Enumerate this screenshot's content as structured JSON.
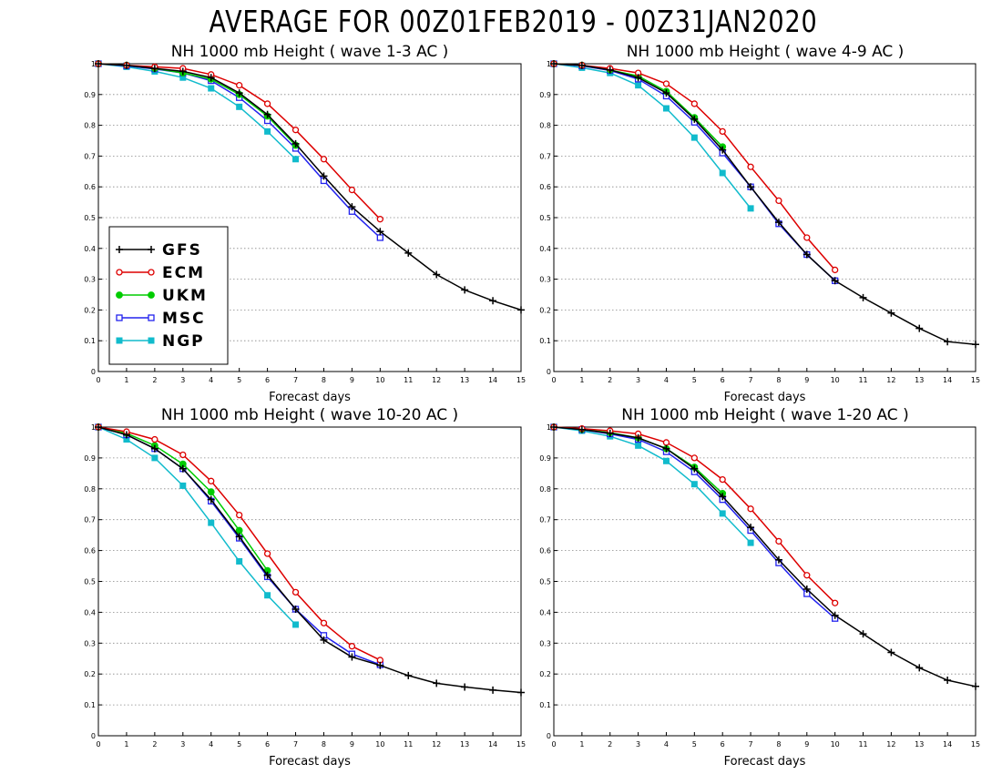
{
  "title": "AVERAGE FOR 00Z01FEB2019 - 00Z31JAN2020",
  "colors": {
    "GFS": "#000000",
    "ECM": "#dd0000",
    "UKM": "#00cc00",
    "MSC": "#2222ee",
    "NGP": "#11bbcc",
    "grid": "#888888"
  },
  "chart_data": [
    {
      "type": "line",
      "title": "NH 1000 mb Height ( wave 1-3 AC )",
      "xlabel": "Forecast days",
      "ylabel": "",
      "xlim": [
        0,
        15
      ],
      "ylim": [
        0,
        1
      ],
      "x_ticks": [
        "0",
        "1",
        "2",
        "3",
        "4",
        "5",
        "6",
        "7",
        "8",
        "9",
        "10",
        "11",
        "12",
        "13",
        "14",
        "15"
      ],
      "y_ticks": [
        "0",
        "0.1",
        "0.2",
        "0.3",
        "0.4",
        "0.5",
        "0.6",
        "0.7",
        "0.8",
        "0.9",
        "1"
      ],
      "grid": true,
      "legend": "bottom-left",
      "series": [
        {
          "name": "GFS",
          "marker": "plus",
          "x": [
            0,
            1,
            2,
            3,
            4,
            5,
            6,
            7,
            8,
            9,
            10,
            11,
            12,
            13,
            14,
            15
          ],
          "values": [
            1.0,
            0.995,
            0.985,
            0.975,
            0.955,
            0.905,
            0.835,
            0.74,
            0.635,
            0.535,
            0.455,
            0.385,
            0.315,
            0.265,
            0.23,
            0.2
          ]
        },
        {
          "name": "ECM",
          "marker": "circle",
          "x": [
            0,
            1,
            2,
            3,
            4,
            5,
            6,
            7,
            8,
            9,
            10
          ],
          "values": [
            1.0,
            0.995,
            0.99,
            0.985,
            0.965,
            0.93,
            0.87,
            0.785,
            0.69,
            0.59,
            0.495
          ]
        },
        {
          "name": "UKM",
          "marker": "filled-circle",
          "x": [
            0,
            1,
            2,
            3,
            4,
            5,
            6,
            7
          ],
          "values": [
            1.0,
            0.995,
            0.985,
            0.97,
            0.95,
            0.9,
            0.83,
            0.735
          ]
        },
        {
          "name": "MSC",
          "marker": "square",
          "x": [
            0,
            1,
            2,
            3,
            4,
            5,
            6,
            7,
            8,
            9,
            10
          ],
          "values": [
            1.0,
            0.993,
            0.983,
            0.97,
            0.945,
            0.89,
            0.815,
            0.725,
            0.62,
            0.52,
            0.435
          ]
        },
        {
          "name": "NGP",
          "marker": "filled-square",
          "x": [
            0,
            1,
            2,
            3,
            4,
            5,
            6,
            7
          ],
          "values": [
            1.0,
            0.99,
            0.975,
            0.955,
            0.92,
            0.86,
            0.78,
            0.69
          ]
        }
      ]
    },
    {
      "type": "line",
      "title": "NH 1000 mb Height ( wave 4-9 AC )",
      "xlabel": "Forecast days",
      "ylabel": "",
      "xlim": [
        0,
        15
      ],
      "ylim": [
        0,
        1
      ],
      "x_ticks": [
        "0",
        "1",
        "2",
        "3",
        "4",
        "5",
        "6",
        "7",
        "8",
        "9",
        "10",
        "11",
        "12",
        "13",
        "14",
        "15"
      ],
      "y_ticks": [
        "0",
        "0.1",
        "0.2",
        "0.3",
        "0.4",
        "0.5",
        "0.6",
        "0.7",
        "0.8",
        "0.9",
        "1"
      ],
      "grid": true,
      "legend": "",
      "series": [
        {
          "name": "GFS",
          "marker": "plus",
          "x": [
            0,
            1,
            2,
            3,
            4,
            5,
            6,
            7,
            8,
            9,
            10,
            11,
            12,
            13,
            14,
            15
          ],
          "values": [
            1.0,
            0.995,
            0.98,
            0.955,
            0.905,
            0.82,
            0.72,
            0.6,
            0.485,
            0.38,
            0.295,
            0.24,
            0.19,
            0.14,
            0.097,
            0.088
          ]
        },
        {
          "name": "ECM",
          "marker": "circle",
          "x": [
            0,
            1,
            2,
            3,
            4,
            5,
            6,
            7,
            8,
            9,
            10
          ],
          "values": [
            1.0,
            0.995,
            0.985,
            0.97,
            0.935,
            0.87,
            0.78,
            0.665,
            0.555,
            0.435,
            0.33
          ]
        },
        {
          "name": "UKM",
          "marker": "filled-circle",
          "x": [
            0,
            1,
            2,
            3,
            4,
            5,
            6
          ],
          "values": [
            1.0,
            0.995,
            0.98,
            0.96,
            0.91,
            0.825,
            0.73
          ]
        },
        {
          "name": "MSC",
          "marker": "square",
          "x": [
            0,
            1,
            2,
            3,
            4,
            5,
            6,
            7,
            8,
            9,
            10
          ],
          "values": [
            1.0,
            0.993,
            0.978,
            0.95,
            0.895,
            0.81,
            0.71,
            0.6,
            0.48,
            0.38,
            0.295
          ]
        },
        {
          "name": "NGP",
          "marker": "filled-square",
          "x": [
            0,
            1,
            2,
            3,
            4,
            5,
            6,
            7
          ],
          "values": [
            1.0,
            0.987,
            0.97,
            0.93,
            0.855,
            0.76,
            0.645,
            0.53
          ]
        }
      ]
    },
    {
      "type": "line",
      "title": "NH 1000 mb Height ( wave 10-20 AC )",
      "xlabel": "Forecast days",
      "ylabel": "",
      "xlim": [
        0,
        15
      ],
      "ylim": [
        0,
        1
      ],
      "x_ticks": [
        "0",
        "1",
        "2",
        "3",
        "4",
        "5",
        "6",
        "7",
        "8",
        "9",
        "10",
        "11",
        "12",
        "13",
        "14",
        "15"
      ],
      "y_ticks": [
        "0",
        "0.1",
        "0.2",
        "0.3",
        "0.4",
        "0.5",
        "0.6",
        "0.7",
        "0.8",
        "0.9",
        "1"
      ],
      "grid": true,
      "legend": "",
      "series": [
        {
          "name": "GFS",
          "marker": "plus",
          "x": [
            0,
            1,
            2,
            3,
            4,
            5,
            6,
            7,
            8,
            9,
            10,
            11,
            12,
            13,
            14,
            15
          ],
          "values": [
            1.0,
            0.975,
            0.93,
            0.865,
            0.765,
            0.645,
            0.52,
            0.41,
            0.31,
            0.255,
            0.228,
            0.195,
            0.17,
            0.158,
            0.148,
            0.14
          ]
        },
        {
          "name": "ECM",
          "marker": "circle",
          "x": [
            0,
            1,
            2,
            3,
            4,
            5,
            6,
            7,
            8,
            9,
            10
          ],
          "values": [
            1.0,
            0.985,
            0.96,
            0.91,
            0.825,
            0.715,
            0.59,
            0.465,
            0.365,
            0.29,
            0.245
          ]
        },
        {
          "name": "UKM",
          "marker": "filled-circle",
          "x": [
            0,
            1,
            2,
            3,
            4,
            5,
            6
          ],
          "values": [
            1.0,
            0.98,
            0.94,
            0.88,
            0.79,
            0.665,
            0.535
          ]
        },
        {
          "name": "MSC",
          "marker": "square",
          "x": [
            0,
            1,
            2,
            3,
            4,
            5,
            6,
            7,
            8,
            9,
            10
          ],
          "values": [
            1.0,
            0.975,
            0.93,
            0.865,
            0.76,
            0.64,
            0.515,
            0.41,
            0.325,
            0.265,
            0.23
          ]
        },
        {
          "name": "NGP",
          "marker": "filled-square",
          "x": [
            0,
            1,
            2,
            3,
            4,
            5,
            6,
            7
          ],
          "values": [
            1.0,
            0.96,
            0.9,
            0.81,
            0.69,
            0.565,
            0.455,
            0.36
          ]
        }
      ]
    },
    {
      "type": "line",
      "title": "NH 1000 mb Height ( wave 1-20 AC )",
      "xlabel": "Forecast days",
      "ylabel": "",
      "xlim": [
        0,
        15
      ],
      "ylim": [
        0,
        1
      ],
      "x_ticks": [
        "0",
        "1",
        "2",
        "3",
        "4",
        "5",
        "6",
        "7",
        "8",
        "9",
        "10",
        "11",
        "12",
        "13",
        "14",
        "15"
      ],
      "y_ticks": [
        "0",
        "0.1",
        "0.2",
        "0.3",
        "0.4",
        "0.5",
        "0.6",
        "0.7",
        "0.8",
        "0.9",
        "1"
      ],
      "grid": true,
      "legend": "",
      "series": [
        {
          "name": "GFS",
          "marker": "plus",
          "x": [
            0,
            1,
            2,
            3,
            4,
            5,
            6,
            7,
            8,
            9,
            10,
            11,
            12,
            13,
            14,
            15
          ],
          "values": [
            1.0,
            0.992,
            0.98,
            0.965,
            0.93,
            0.865,
            0.775,
            0.675,
            0.57,
            0.475,
            0.39,
            0.33,
            0.27,
            0.22,
            0.18,
            0.16
          ]
        },
        {
          "name": "ECM",
          "marker": "circle",
          "x": [
            0,
            1,
            2,
            3,
            4,
            5,
            6,
            7,
            8,
            9,
            10
          ],
          "values": [
            1.0,
            0.995,
            0.988,
            0.978,
            0.95,
            0.9,
            0.83,
            0.735,
            0.63,
            0.52,
            0.43
          ]
        },
        {
          "name": "UKM",
          "marker": "filled-circle",
          "x": [
            0,
            1,
            2,
            3,
            4,
            5,
            6
          ],
          "values": [
            1.0,
            0.993,
            0.982,
            0.965,
            0.93,
            0.87,
            0.785
          ]
        },
        {
          "name": "MSC",
          "marker": "square",
          "x": [
            0,
            1,
            2,
            3,
            4,
            5,
            6,
            7,
            8,
            9,
            10
          ],
          "values": [
            1.0,
            0.992,
            0.978,
            0.96,
            0.92,
            0.855,
            0.765,
            0.665,
            0.56,
            0.46,
            0.38
          ]
        },
        {
          "name": "NGP",
          "marker": "filled-square",
          "x": [
            0,
            1,
            2,
            3,
            4,
            5,
            6,
            7
          ],
          "values": [
            1.0,
            0.988,
            0.97,
            0.94,
            0.89,
            0.815,
            0.72,
            0.625
          ]
        }
      ]
    }
  ]
}
